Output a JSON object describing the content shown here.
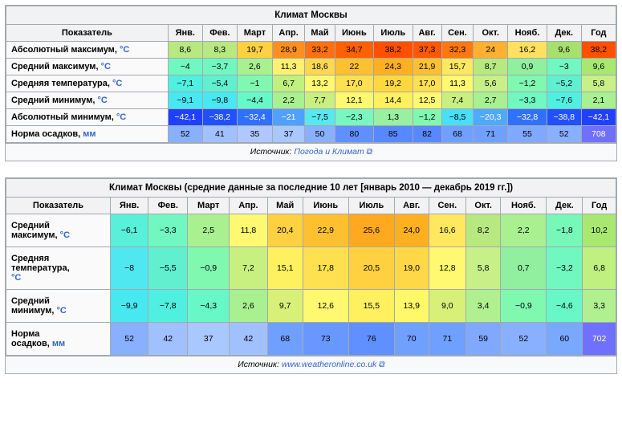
{
  "table1": {
    "title": "Климат Москвы",
    "columns": [
      "Показатель",
      "Янв.",
      "Фев.",
      "Март",
      "Апр.",
      "Май",
      "Июнь",
      "Июль",
      "Авг.",
      "Сен.",
      "Окт.",
      "Нояб.",
      "Дек.",
      "Год"
    ],
    "source_prefix": "Источник: ",
    "source_link": "Погода и Климат",
    "rows": [
      {
        "label": "Абсолютный максимум, °C",
        "cells": [
          {
            "v": "8,6",
            "bg": "#b8e880"
          },
          {
            "v": "8,3",
            "bg": "#b8e880"
          },
          {
            "v": "19,7",
            "bg": "#ffd040"
          },
          {
            "v": "28,9",
            "bg": "#ff9020"
          },
          {
            "v": "33,2",
            "bg": "#ff7010"
          },
          {
            "v": "34,7",
            "bg": "#ff6000"
          },
          {
            "v": "38,2",
            "bg": "#ff5000"
          },
          {
            "v": "37,3",
            "bg": "#ff5800"
          },
          {
            "v": "32,3",
            "bg": "#ff7810"
          },
          {
            "v": "24",
            "bg": "#ffb030"
          },
          {
            "v": "16,2",
            "bg": "#ffe060"
          },
          {
            "v": "9,6",
            "bg": "#a8e070"
          },
          {
            "v": "38,2",
            "bg": "#ff5000"
          }
        ]
      },
      {
        "label": "Средний максимум, °C",
        "cells": [
          {
            "v": "−4",
            "bg": "#70f8c0"
          },
          {
            "v": "−3,7",
            "bg": "#70f8c0"
          },
          {
            "v": "2,6",
            "bg": "#a8f090"
          },
          {
            "v": "11,3",
            "bg": "#fff070"
          },
          {
            "v": "18,6",
            "bg": "#ffd850"
          },
          {
            "v": "22",
            "bg": "#ffc030"
          },
          {
            "v": "24,3",
            "bg": "#ffb020"
          },
          {
            "v": "21,9",
            "bg": "#ffc030"
          },
          {
            "v": "15,7",
            "bg": "#ffe860"
          },
          {
            "v": "8,7",
            "bg": "#b8e880"
          },
          {
            "v": "0,9",
            "bg": "#90f0a0"
          },
          {
            "v": "−3",
            "bg": "#70f8c0"
          },
          {
            "v": "9,6",
            "bg": "#a8e870"
          }
        ]
      },
      {
        "label": "Средняя температура, °C",
        "cells": [
          {
            "v": "−7,1",
            "bg": "#50f0e0"
          },
          {
            "v": "−5,4",
            "bg": "#60f0d0"
          },
          {
            "v": "−1",
            "bg": "#80f8b0"
          },
          {
            "v": "6,7",
            "bg": "#c0f080"
          },
          {
            "v": "13,2",
            "bg": "#fff870"
          },
          {
            "v": "17,0",
            "bg": "#ffe050"
          },
          {
            "v": "19,2",
            "bg": "#ffd840"
          },
          {
            "v": "17,0",
            "bg": "#ffe050"
          },
          {
            "v": "11,3",
            "bg": "#fff870"
          },
          {
            "v": "5,6",
            "bg": "#c8f088"
          },
          {
            "v": "−1,2",
            "bg": "#80f8b0"
          },
          {
            "v": "−5,2",
            "bg": "#60f0d0"
          },
          {
            "v": "5,8",
            "bg": "#c8f088"
          }
        ]
      },
      {
        "label": "Средний минимум, °C",
        "cells": [
          {
            "v": "−9,1",
            "bg": "#48e8f0"
          },
          {
            "v": "−9,8",
            "bg": "#48e8f0"
          },
          {
            "v": "−4,4",
            "bg": "#68f8c8"
          },
          {
            "v": "2,2",
            "bg": "#a8f090"
          },
          {
            "v": "7,7",
            "bg": "#c8f080"
          },
          {
            "v": "12,1",
            "bg": "#fff870"
          },
          {
            "v": "14,4",
            "bg": "#fff060"
          },
          {
            "v": "12,5",
            "bg": "#fff870"
          },
          {
            "v": "7,4",
            "bg": "#c8f080"
          },
          {
            "v": "2,7",
            "bg": "#a8f090"
          },
          {
            "v": "−3,3",
            "bg": "#70f8c0"
          },
          {
            "v": "−7,6",
            "bg": "#50f0e0"
          },
          {
            "v": "2,1",
            "bg": "#a8f090"
          }
        ]
      },
      {
        "label": "Абсолютный минимум, °C",
        "cells": [
          {
            "v": "−42,1",
            "bg": "#2040ff",
            "fg": "#fff"
          },
          {
            "v": "−38,2",
            "bg": "#2050ff",
            "fg": "#fff"
          },
          {
            "v": "−32,4",
            "bg": "#3070ff",
            "fg": "#fff"
          },
          {
            "v": "−21",
            "bg": "#50a0ff",
            "fg": "#fff"
          },
          {
            "v": "−7,5",
            "bg": "#58e8f0"
          },
          {
            "v": "−2,3",
            "bg": "#78f8c0"
          },
          {
            "v": "1,3",
            "bg": "#98f0a0"
          },
          {
            "v": "−1,2",
            "bg": "#80f8b0"
          },
          {
            "v": "−8,5",
            "bg": "#48e0f8"
          },
          {
            "v": "−20,3",
            "bg": "#50a8ff",
            "fg": "#fff"
          },
          {
            "v": "−32,8",
            "bg": "#3070ff",
            "fg": "#fff"
          },
          {
            "v": "−38,8",
            "bg": "#2050ff",
            "fg": "#fff"
          },
          {
            "v": "−42,1",
            "bg": "#2040ff",
            "fg": "#fff"
          }
        ]
      },
      {
        "label": "Норма осадков, мм",
        "link": true,
        "cells": [
          {
            "v": "52",
            "bg": "#88b0ff"
          },
          {
            "v": "41",
            "bg": "#a0c0ff"
          },
          {
            "v": "35",
            "bg": "#b0c8ff"
          },
          {
            "v": "37",
            "bg": "#a8c8ff"
          },
          {
            "v": "50",
            "bg": "#88b0ff"
          },
          {
            "v": "80",
            "bg": "#6090ff"
          },
          {
            "v": "85",
            "bg": "#5888ff"
          },
          {
            "v": "82",
            "bg": "#5888ff"
          },
          {
            "v": "68",
            "bg": "#70a0ff"
          },
          {
            "v": "71",
            "bg": "#70a0ff"
          },
          {
            "v": "55",
            "bg": "#80a8ff"
          },
          {
            "v": "52",
            "bg": "#88b0ff"
          },
          {
            "v": "708",
            "bg": "#7070ff",
            "fg": "#fff"
          }
        ]
      }
    ]
  },
  "table2": {
    "title": "Климат Москвы (средние данные за последние 10 лет [январь 2010 — декабрь 2019 гг.])",
    "columns": [
      "Показатель",
      "Янв.",
      "Фев.",
      "Март",
      "Апр.",
      "Май",
      "Июнь",
      "Июль",
      "Авг.",
      "Сен.",
      "Окт.",
      "Нояб.",
      "Дек.",
      "Год"
    ],
    "source_prefix": "Источник: ",
    "source_link": "www.weatheronline.co.uk",
    "rows": [
      {
        "label": "Средний\nмаксимум, °C",
        "cells": [
          {
            "v": "−6,1",
            "bg": "#58f0d8"
          },
          {
            "v": "−3,3",
            "bg": "#70f8c0"
          },
          {
            "v": "2,5",
            "bg": "#a8f090"
          },
          {
            "v": "11,8",
            "bg": "#fff870"
          },
          {
            "v": "20,4",
            "bg": "#ffd040"
          },
          {
            "v": "22,9",
            "bg": "#ffc030"
          },
          {
            "v": "25,6",
            "bg": "#ffa820"
          },
          {
            "v": "24,0",
            "bg": "#ffb020"
          },
          {
            "v": "16,6",
            "bg": "#ffe860"
          },
          {
            "v": "8,2",
            "bg": "#b8e880"
          },
          {
            "v": "2,2",
            "bg": "#a8f090"
          },
          {
            "v": "−1,8",
            "bg": "#78f8b8"
          },
          {
            "v": "10,2",
            "bg": "#a8e870"
          }
        ]
      },
      {
        "label": "Средняя\nтемпература,\n°C",
        "cells": [
          {
            "v": "−8",
            "bg": "#50e8f0"
          },
          {
            "v": "−5,5",
            "bg": "#60f0d0"
          },
          {
            "v": "−0,9",
            "bg": "#80f8b0"
          },
          {
            "v": "7,2",
            "bg": "#c8f080"
          },
          {
            "v": "15,1",
            "bg": "#fff060"
          },
          {
            "v": "17,8",
            "bg": "#ffe050"
          },
          {
            "v": "20,5",
            "bg": "#ffd040"
          },
          {
            "v": "19,0",
            "bg": "#ffd848"
          },
          {
            "v": "12,8",
            "bg": "#fff870"
          },
          {
            "v": "5,8",
            "bg": "#c8f088"
          },
          {
            "v": "0,7",
            "bg": "#90f0a0"
          },
          {
            "v": "−3,2",
            "bg": "#70f8c0"
          },
          {
            "v": "6,8",
            "bg": "#c0f080"
          }
        ]
      },
      {
        "label": "Средний\nминимум, °C",
        "cells": [
          {
            "v": "−9,9",
            "bg": "#48e8f0"
          },
          {
            "v": "−7,8",
            "bg": "#50f0e0"
          },
          {
            "v": "−4,3",
            "bg": "#68f8c8"
          },
          {
            "v": "2,6",
            "bg": "#a8f090"
          },
          {
            "v": "9,7",
            "bg": "#d8f078"
          },
          {
            "v": "12,6",
            "bg": "#fff870"
          },
          {
            "v": "15,5",
            "bg": "#fff060"
          },
          {
            "v": "13,9",
            "bg": "#fff868"
          },
          {
            "v": "9,0",
            "bg": "#d8f078"
          },
          {
            "v": "3,4",
            "bg": "#b0f090"
          },
          {
            "v": "−0,9",
            "bg": "#80f8b0"
          },
          {
            "v": "−4,6",
            "bg": "#68f8c8"
          },
          {
            "v": "3,3",
            "bg": "#b0f090"
          }
        ]
      },
      {
        "label": "Норма\nосадков, мм",
        "link": true,
        "cells": [
          {
            "v": "52",
            "bg": "#88b0ff"
          },
          {
            "v": "42",
            "bg": "#a0c0ff"
          },
          {
            "v": "37",
            "bg": "#a8c8ff"
          },
          {
            "v": "42",
            "bg": "#a0c0ff"
          },
          {
            "v": "68",
            "bg": "#70a0ff"
          },
          {
            "v": "73",
            "bg": "#6898ff"
          },
          {
            "v": "76",
            "bg": "#6090ff"
          },
          {
            "v": "70",
            "bg": "#70a0ff"
          },
          {
            "v": "71",
            "bg": "#70a0ff"
          },
          {
            "v": "59",
            "bg": "#80a8ff"
          },
          {
            "v": "52",
            "bg": "#88b0ff"
          },
          {
            "v": "60",
            "bg": "#78a8ff"
          },
          {
            "v": "702",
            "bg": "#7070ff",
            "fg": "#fff"
          }
        ]
      }
    ]
  }
}
